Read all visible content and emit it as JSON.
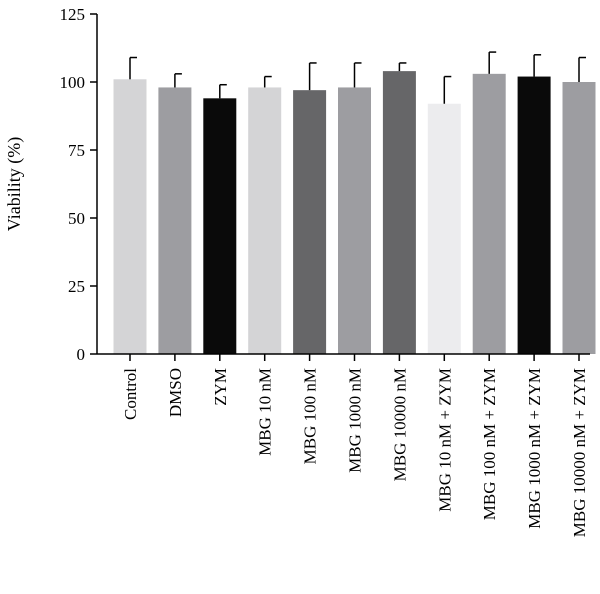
{
  "chart_data": {
    "type": "bar",
    "title": "",
    "xlabel": "",
    "ylabel": "Viability (%)",
    "ylim": [
      0,
      125
    ],
    "yticks": [
      0,
      25,
      50,
      75,
      100,
      125
    ],
    "grid": false,
    "categories": [
      "Control",
      "DMSO",
      "ZYM",
      "MBG 10 nM",
      "MBG 100 nM",
      "MBG 1000 nM",
      "MBG 10000 nM",
      "MBG 10 nM + ZYM",
      "MBG 100 nM + ZYM",
      "MBG 1000 nM + ZYM",
      "MBG 10000 nM + ZYM"
    ],
    "values": [
      101,
      98,
      94,
      98,
      97,
      98,
      104,
      92,
      103,
      102,
      100
    ],
    "errors": [
      8,
      5,
      5,
      4,
      10,
      9,
      3,
      10,
      8,
      8,
      9
    ],
    "bar_colors": [
      "#d4d4d6",
      "#9d9da1",
      "#0a0a0a",
      "#d4d4d6",
      "#666668",
      "#9d9da1",
      "#666668",
      "#ececee",
      "#9d9da1",
      "#0a0a0a",
      "#9d9da1"
    ]
  }
}
